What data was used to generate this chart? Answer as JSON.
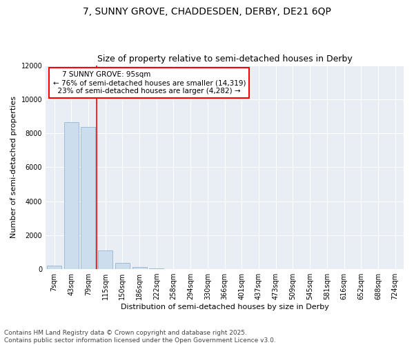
{
  "title_line1": "7, SUNNY GROVE, CHADDESDEN, DERBY, DE21 6QP",
  "title_line2": "Size of property relative to semi-detached houses in Derby",
  "xlabel": "Distribution of semi-detached houses by size in Derby",
  "ylabel": "Number of semi-detached properties",
  "footnote1": "Contains HM Land Registry data © Crown copyright and database right 2025.",
  "footnote2": "Contains public sector information licensed under the Open Government Licence v3.0.",
  "categories": [
    "7sqm",
    "43sqm",
    "79sqm",
    "115sqm",
    "150sqm",
    "186sqm",
    "222sqm",
    "258sqm",
    "294sqm",
    "330sqm",
    "366sqm",
    "401sqm",
    "437sqm",
    "473sqm",
    "509sqm",
    "545sqm",
    "581sqm",
    "616sqm",
    "652sqm",
    "688sqm",
    "724sqm"
  ],
  "values": [
    200,
    8650,
    8350,
    1100,
    350,
    110,
    50,
    0,
    0,
    0,
    0,
    0,
    0,
    0,
    0,
    0,
    0,
    0,
    0,
    0,
    0
  ],
  "bar_color": "#ccdded",
  "bar_edge_color": "#88aacc",
  "property_line_x": 2.5,
  "property_label": "7 SUNNY GROVE: 95sqm",
  "pct_smaller": 76,
  "count_smaller": 14319,
  "pct_larger": 23,
  "count_larger": 4282,
  "line_color": "red",
  "ylim": [
    0,
    12000
  ],
  "yticks": [
    0,
    2000,
    4000,
    6000,
    8000,
    10000,
    12000
  ],
  "background_color": "#e8eef4",
  "grid_color": "white",
  "title_fontsize": 10,
  "subtitle_fontsize": 9,
  "axis_label_fontsize": 8,
  "tick_fontsize": 7,
  "annotation_fontsize": 7.5,
  "footnote_fontsize": 6.5
}
